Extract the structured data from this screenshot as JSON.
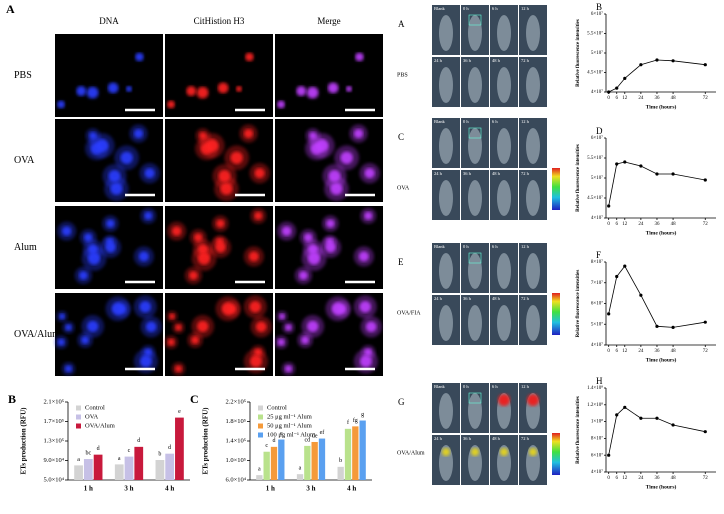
{
  "microscopy": {
    "panel": "A",
    "columns": [
      "DNA",
      "CitHistion H3",
      "Merge"
    ],
    "rows": [
      "PBS",
      "OVA",
      "Alum",
      "OVA/Alum"
    ]
  },
  "imaging": {
    "panels": [
      {
        "label": "A",
        "group": "PBS"
      },
      {
        "label": "C",
        "group": "OVA"
      },
      {
        "label": "E",
        "group": "OVA/FIA"
      },
      {
        "label": "G",
        "group": "OVA/Alum"
      }
    ],
    "time_labels": [
      "Blank",
      "0 h",
      "6 h",
      "12 h",
      "24 h",
      "36 h",
      "48 h",
      "72 h"
    ]
  },
  "chart_data": [
    {
      "type": "bar",
      "panel": "B",
      "y_label": "ETs production (RFU)",
      "categories": [
        "1 h",
        "3 h",
        "4 h"
      ],
      "series": [
        {
          "name": "Control",
          "color": "#d3d3d3",
          "values": [
            80000,
            82000,
            91000
          ],
          "letters": [
            "a",
            "a",
            "b"
          ]
        },
        {
          "name": "OVA",
          "color": "#c6c0e6",
          "values": [
            93000,
            98000,
            104000
          ],
          "letters": [
            "bc",
            "c",
            "d"
          ]
        },
        {
          "name": "OVA/Alum",
          "color": "#c8193c",
          "values": [
            102000,
            118000,
            178000
          ],
          "letters": [
            "d",
            "d",
            "e"
          ]
        }
      ],
      "ylim": [
        50000,
        210000
      ],
      "yticks": [
        {
          "value": 50000,
          "label": "5.0×10⁴"
        },
        {
          "value": 90000,
          "label": "9.0×10⁴"
        },
        {
          "value": 130000,
          "label": "1.3×10⁵"
        },
        {
          "value": 170000,
          "label": "1.7×10⁵"
        },
        {
          "value": 210000,
          "label": "2.1×10⁵"
        }
      ]
    },
    {
      "type": "bar",
      "panel": "C",
      "y_label": "ETs production (RFU)",
      "categories": [
        "1 h",
        "3 h",
        "4 h"
      ],
      "series": [
        {
          "name": "Control",
          "color": "#d3d3d3",
          "values": [
            70000,
            72000,
            87000
          ],
          "letters": [
            "a",
            "a",
            "b"
          ]
        },
        {
          "name": "25 μg ml⁻¹ Alum",
          "color": "#b9e28c",
          "values": [
            118000,
            130000,
            165000
          ],
          "letters": [
            "c",
            "cd",
            "f"
          ]
        },
        {
          "name": "50 μg ml⁻¹ Alum",
          "color": "#f59a3a",
          "values": [
            128000,
            138000,
            170000
          ],
          "letters": [
            "d",
            "de",
            "fg"
          ]
        },
        {
          "name": "100 μg ml⁻¹ Alum",
          "color": "#5aa0f0",
          "values": [
            143000,
            145000,
            182000
          ],
          "letters": [
            "e",
            "ef",
            "g"
          ]
        }
      ],
      "ylim": [
        60000,
        220000
      ],
      "yticks": [
        {
          "value": 60000,
          "label": "6.0×10⁴"
        },
        {
          "value": 100000,
          "label": "1.0×10⁵"
        },
        {
          "value": 140000,
          "label": "1.4×10⁵"
        },
        {
          "value": 180000,
          "label": "1.8×10⁵"
        },
        {
          "value": 220000,
          "label": "2.2×10⁵"
        }
      ]
    },
    {
      "type": "line",
      "panel": "B",
      "x_label": "Time (hours)",
      "y_label": "Relative fluorescence intensities",
      "x": [
        0,
        6,
        12,
        24,
        36,
        48,
        72
      ],
      "values": [
        40000000,
        41000000,
        43500000,
        47000000,
        48200000,
        48000000,
        47000000
      ],
      "xlim": [
        -2,
        80
      ],
      "xticks": [
        0,
        6,
        12,
        24,
        36,
        48,
        72
      ],
      "ylim": [
        40000000,
        60000000
      ],
      "yticks": [
        {
          "value": 40000000,
          "label": "4×10⁷"
        },
        {
          "value": 45000000,
          "label": "4.5×10⁷"
        },
        {
          "value": 50000000,
          "label": "5×10⁷"
        },
        {
          "value": 55000000,
          "label": "5.5×10⁷"
        },
        {
          "value": 60000000,
          "label": "6×10⁷"
        }
      ]
    },
    {
      "type": "line",
      "panel": "D",
      "x_label": "Time (hours)",
      "y_label": "Relative fluorescence intensities",
      "x": [
        0,
        6,
        12,
        24,
        36,
        48,
        72
      ],
      "values": [
        43000000,
        53500000,
        54000000,
        53000000,
        51000000,
        51000000,
        49500000
      ],
      "xlim": [
        -2,
        80
      ],
      "xticks": [
        0,
        6,
        12,
        24,
        36,
        48,
        72
      ],
      "ylim": [
        40000000,
        60000000
      ],
      "yticks": [
        {
          "value": 40000000,
          "label": "4×10⁷"
        },
        {
          "value": 45000000,
          "label": "4.5×10⁷"
        },
        {
          "value": 50000000,
          "label": "5×10⁷"
        },
        {
          "value": 55000000,
          "label": "5.5×10⁷"
        },
        {
          "value": 60000000,
          "label": "6×10⁷"
        }
      ]
    },
    {
      "type": "line",
      "panel": "F",
      "x_label": "Time (hours)",
      "y_label": "Relative fluorescence intensities",
      "x": [
        0,
        6,
        12,
        24,
        36,
        48,
        72
      ],
      "values": [
        55000000,
        73000000,
        78000000,
        64000000,
        49000000,
        48500000,
        51000000
      ],
      "xlim": [
        -2,
        80
      ],
      "xticks": [
        0,
        6,
        12,
        24,
        36,
        48,
        72
      ],
      "ylim": [
        40000000,
        80000000
      ],
      "yticks": [
        {
          "value": 40000000,
          "label": "4×10⁷"
        },
        {
          "value": 50000000,
          "label": "5×10⁷"
        },
        {
          "value": 60000000,
          "label": "6×10⁷"
        },
        {
          "value": 70000000,
          "label": "7×10⁷"
        },
        {
          "value": 80000000,
          "label": "8×10⁷"
        }
      ]
    },
    {
      "type": "line",
      "panel": "H",
      "x_label": "Time (hours)",
      "y_label": "Relative fluorescence intensities",
      "x": [
        0,
        6,
        12,
        24,
        36,
        48,
        72
      ],
      "values": [
        60000000,
        108000000,
        117000000,
        104000000,
        104000000,
        96000000,
        88000000
      ],
      "xlim": [
        -2,
        80
      ],
      "xticks": [
        0,
        6,
        12,
        24,
        36,
        48,
        72
      ],
      "ylim": [
        40000000,
        140000000
      ],
      "yticks": [
        {
          "value": 40000000,
          "label": "4×10⁷"
        },
        {
          "value": 60000000,
          "label": "6×10⁷"
        },
        {
          "value": 80000000,
          "label": "8×10⁷"
        },
        {
          "value": 100000000,
          "label": "1×10⁸"
        },
        {
          "value": 120000000,
          "label": "1.2×10⁸"
        },
        {
          "value": 140000000,
          "label": "1.4×10⁸"
        }
      ]
    }
  ]
}
